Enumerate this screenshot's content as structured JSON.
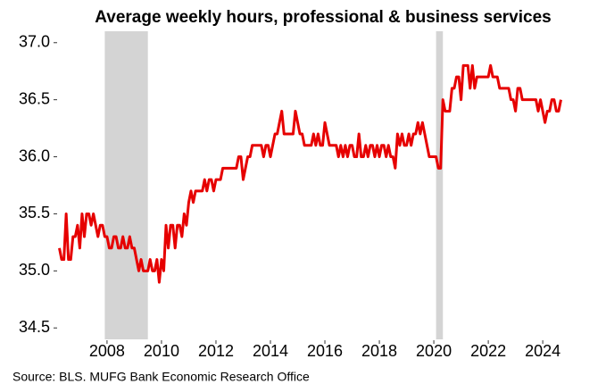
{
  "chart_data": {
    "type": "line",
    "title": "Average weekly hours, professional & business services",
    "source": "Source: BLS. MUFG Bank Economic Research Office",
    "xlim": [
      2006.2,
      2025.7
    ],
    "ylim": [
      34.4,
      37.1
    ],
    "xticks": [
      2008,
      2010,
      2012,
      2014,
      2016,
      2018,
      2020,
      2022,
      2024
    ],
    "yticks": [
      34.5,
      {
        "value": 35,
        "label": "35.0"
      },
      35.5,
      {
        "value": 36,
        "label": "36.0"
      },
      36.5,
      {
        "value": 37,
        "label": "37.0"
      }
    ],
    "shaded_ranges": [
      [
        2007.917,
        2009.5
      ],
      [
        2020.083,
        2020.333
      ]
    ],
    "shade_color": "#d4d4d4",
    "series": [
      {
        "color": "#e60000",
        "x": [
          2006.25,
          2006.333,
          2006.417,
          2006.5,
          2006.583,
          2006.667,
          2006.75,
          2006.833,
          2006.917,
          2007,
          2007.083,
          2007.167,
          2007.25,
          2007.333,
          2007.417,
          2007.5,
          2007.583,
          2007.667,
          2007.75,
          2007.833,
          2007.917,
          2008,
          2008.083,
          2008.167,
          2008.25,
          2008.333,
          2008.417,
          2008.5,
          2008.583,
          2008.667,
          2008.75,
          2008.833,
          2008.917,
          2009,
          2009.083,
          2009.167,
          2009.25,
          2009.333,
          2009.417,
          2009.5,
          2009.583,
          2009.667,
          2009.75,
          2009.833,
          2009.917,
          2010,
          2010.083,
          2010.167,
          2010.25,
          2010.333,
          2010.417,
          2010.5,
          2010.583,
          2010.667,
          2010.75,
          2010.833,
          2010.917,
          2011,
          2011.083,
          2011.167,
          2011.25,
          2011.333,
          2011.417,
          2011.5,
          2011.583,
          2011.667,
          2011.75,
          2011.833,
          2011.917,
          2012,
          2012.083,
          2012.167,
          2012.25,
          2012.333,
          2012.417,
          2012.5,
          2012.583,
          2012.667,
          2012.75,
          2012.833,
          2012.917,
          2013,
          2013.083,
          2013.167,
          2013.25,
          2013.333,
          2013.417,
          2013.5,
          2013.583,
          2013.667,
          2013.75,
          2013.833,
          2013.917,
          2014,
          2014.083,
          2014.167,
          2014.25,
          2014.333,
          2014.417,
          2014.5,
          2014.583,
          2014.667,
          2014.75,
          2014.833,
          2014.917,
          2015,
          2015.083,
          2015.167,
          2015.25,
          2015.333,
          2015.417,
          2015.5,
          2015.583,
          2015.667,
          2015.75,
          2015.833,
          2015.917,
          2016,
          2016.083,
          2016.167,
          2016.25,
          2016.333,
          2016.417,
          2016.5,
          2016.583,
          2016.667,
          2016.75,
          2016.833,
          2016.917,
          2017,
          2017.083,
          2017.167,
          2017.25,
          2017.333,
          2017.417,
          2017.5,
          2017.583,
          2017.667,
          2017.75,
          2017.833,
          2017.917,
          2018,
          2018.083,
          2018.167,
          2018.25,
          2018.333,
          2018.417,
          2018.5,
          2018.583,
          2018.667,
          2018.75,
          2018.833,
          2018.917,
          2019,
          2019.083,
          2019.167,
          2019.25,
          2019.333,
          2019.417,
          2019.5,
          2019.583,
          2019.667,
          2019.75,
          2019.833,
          2019.917,
          2020,
          2020.083,
          2020.167,
          2020.25,
          2020.333,
          2020.417,
          2020.5,
          2020.583,
          2020.667,
          2020.75,
          2020.833,
          2020.917,
          2021,
          2021.083,
          2021.167,
          2021.25,
          2021.333,
          2021.417,
          2021.5,
          2021.583,
          2021.667,
          2021.75,
          2021.833,
          2021.917,
          2022,
          2022.083,
          2022.167,
          2022.25,
          2022.333,
          2022.417,
          2022.5,
          2022.583,
          2022.667,
          2022.75,
          2022.833,
          2022.917,
          2023,
          2023.083,
          2023.167,
          2023.25,
          2023.333,
          2023.417,
          2023.5,
          2023.583,
          2023.667,
          2023.75,
          2023.833,
          2023.917,
          2024,
          2024.083,
          2024.167,
          2024.25,
          2024.333,
          2024.417,
          2024.5,
          2024.583,
          2024.667
        ],
        "values": [
          35.2,
          35.1,
          35.1,
          35.5,
          35.1,
          35.1,
          35.3,
          35.3,
          35.4,
          35.2,
          35.5,
          35.3,
          35.5,
          35.5,
          35.4,
          35.5,
          35.4,
          35.3,
          35.4,
          35.4,
          35.3,
          35.3,
          35.2,
          35.2,
          35.3,
          35.3,
          35.2,
          35.2,
          35.3,
          35.2,
          35.2,
          35.3,
          35.2,
          35.2,
          35.1,
          35.0,
          35.1,
          35.0,
          35.0,
          35.0,
          35.1,
          35.0,
          35.0,
          35.1,
          34.9,
          35.1,
          35.0,
          35.4,
          35.2,
          35.4,
          35.4,
          35.2,
          35.4,
          35.4,
          35.3,
          35.5,
          35.4,
          35.6,
          35.7,
          35.6,
          35.7,
          35.7,
          35.7,
          35.7,
          35.8,
          35.7,
          35.8,
          35.8,
          35.7,
          35.8,
          35.8,
          35.8,
          35.9,
          35.9,
          35.9,
          35.9,
          35.9,
          35.9,
          35.9,
          36.0,
          36.0,
          35.8,
          35.9,
          36.0,
          36.0,
          36.1,
          36.1,
          36.1,
          36.1,
          36.1,
          36.0,
          36.1,
          36.1,
          36.0,
          36.1,
          36.2,
          36.2,
          36.3,
          36.4,
          36.2,
          36.2,
          36.2,
          36.2,
          36.2,
          36.4,
          36.3,
          36.2,
          36.2,
          36.1,
          36.1,
          36.1,
          36.1,
          36.2,
          36.1,
          36.2,
          36.1,
          36.1,
          36.3,
          36.2,
          36.1,
          36.1,
          36.1,
          36.1,
          36.0,
          36.1,
          36.0,
          36.1,
          36.0,
          36.1,
          36.1,
          36.0,
          36.0,
          36.2,
          36.0,
          36.0,
          36.1,
          36.0,
          36.1,
          36.1,
          36.0,
          36.1,
          36.0,
          36.1,
          36.1,
          36.0,
          36.1,
          36.0,
          36.0,
          35.9,
          36.2,
          36.1,
          36.2,
          36.1,
          36.1,
          36.2,
          36.1,
          36.2,
          36.2,
          36.3,
          36.2,
          36.3,
          36.2,
          36.1,
          36.0,
          36.0,
          36.0,
          36.0,
          35.9,
          35.9,
          36.5,
          36.4,
          36.4,
          36.4,
          36.6,
          36.6,
          36.7,
          36.7,
          36.5,
          36.8,
          36.8,
          36.8,
          36.6,
          36.8,
          36.6,
          36.7,
          36.7,
          36.7,
          36.7,
          36.7,
          36.7,
          36.8,
          36.7,
          36.7,
          36.7,
          36.6,
          36.6,
          36.6,
          36.6,
          36.6,
          36.5,
          36.5,
          36.4,
          36.6,
          36.6,
          36.5,
          36.5,
          36.5,
          36.5,
          36.5,
          36.5,
          36.5,
          36.4,
          36.5,
          36.4,
          36.3,
          36.4,
          36.4,
          36.5,
          36.5,
          36.4,
          36.4,
          36.5
        ]
      }
    ]
  }
}
